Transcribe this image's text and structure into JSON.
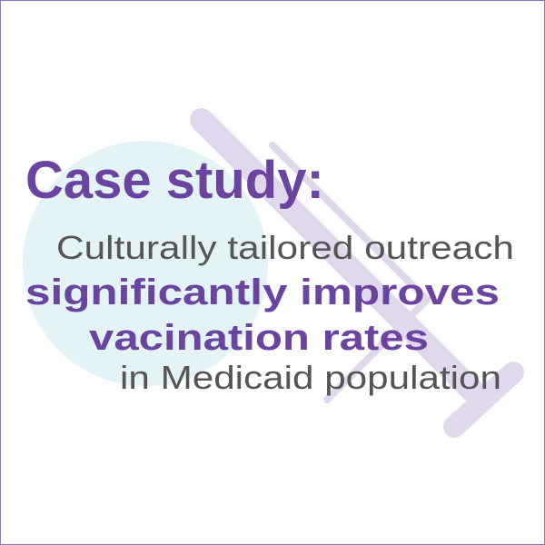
{
  "heading": "Case study:",
  "lines": [
    "Culturally tailored outreach",
    "significantly improves",
    "vacination rates",
    "in Medicaid population"
  ]
}
